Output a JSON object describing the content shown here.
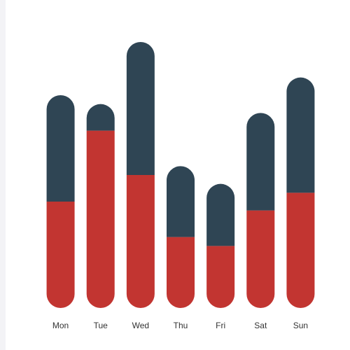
{
  "chart_data": {
    "type": "bar",
    "stacked": true,
    "categories": [
      "Mon",
      "Tue",
      "Wed",
      "Thu",
      "Fri",
      "Sat",
      "Sun"
    ],
    "series": [
      {
        "values": [
          120,
          200,
          150,
          80,
          70,
          110,
          130
        ],
        "color": "#c23531"
      },
      {
        "values": [
          120,
          30,
          150,
          80,
          70,
          110,
          130
        ],
        "color": "#2f4554"
      }
    ],
    "ylim": [
      0,
      300
    ],
    "grid": false,
    "bar_shape": "rounded-pill"
  }
}
